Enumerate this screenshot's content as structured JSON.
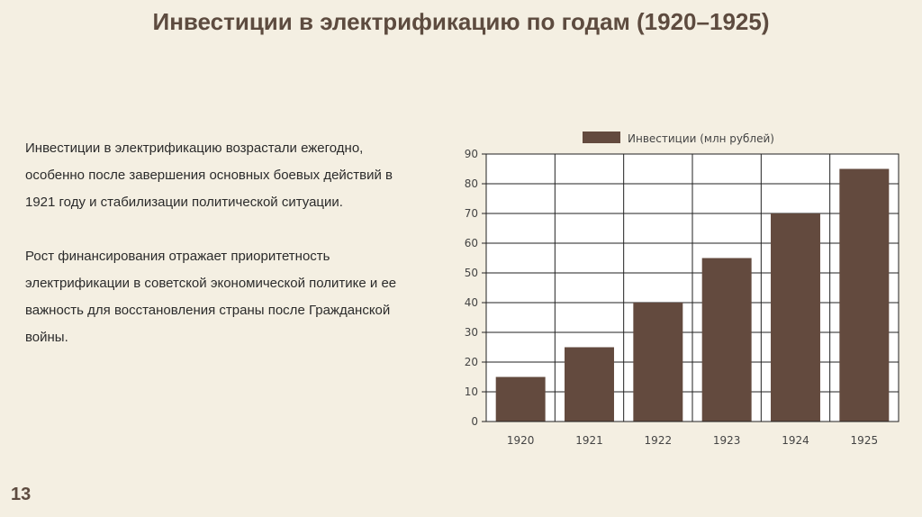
{
  "slide": {
    "title": "Инвестиции в электрификацию по годам (1920–1925)",
    "paragraphs": [
      "Инвестиции в электрификацию возрастали ежегодно, особенно после завершения основных боевых действий в 1921 году и стабилизации политической ситуации.",
      "Рост финансирования отражает приоритетность электрификации в советской экономической политике и ее важность для восстановления страны после Гражданской войны."
    ],
    "page_number": "13"
  },
  "chart_data": {
    "type": "bar",
    "categories": [
      "1920",
      "1921",
      "1922",
      "1923",
      "1924",
      "1925"
    ],
    "series": [
      {
        "name": "Инвестиции (млн рублей)",
        "values": [
          15,
          25,
          40,
          55,
          70,
          85
        ],
        "color": "#634a3e"
      }
    ],
    "ylim": [
      0,
      90
    ],
    "yticks": [
      0,
      10,
      20,
      30,
      40,
      50,
      60,
      70,
      80,
      90
    ],
    "grid": true,
    "legend": "top"
  }
}
